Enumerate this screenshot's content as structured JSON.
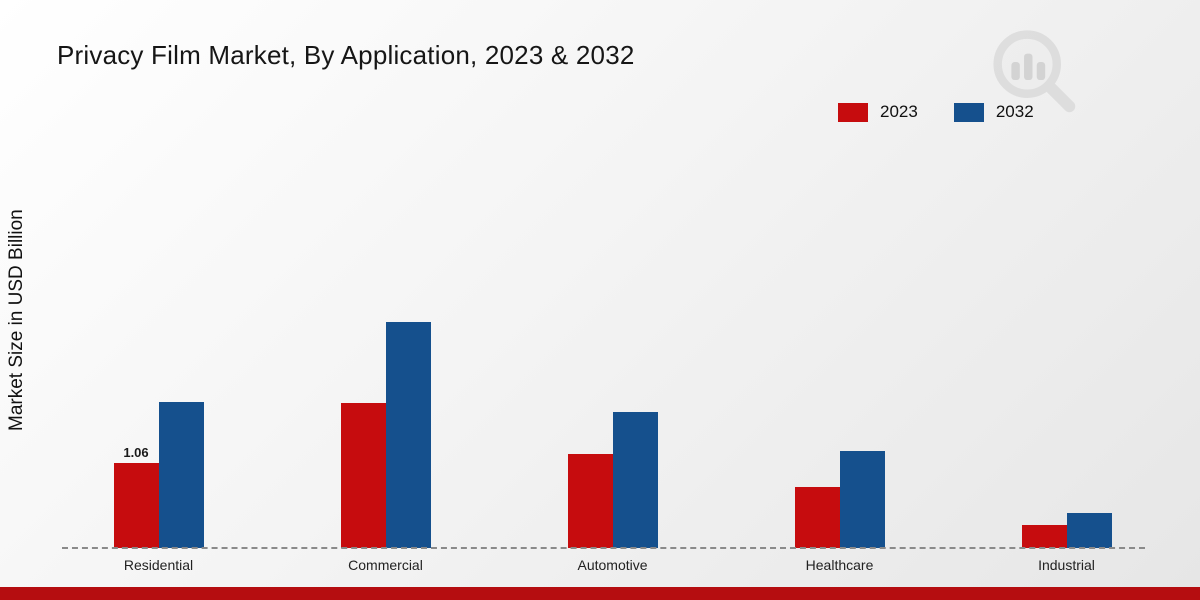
{
  "title": "Privacy Film Market, By Application, 2023 & 2032",
  "chart_data": {
    "type": "bar",
    "title": "Privacy Film Market, By Application, 2023 & 2032",
    "xlabel": "",
    "ylabel": "Market Size in USD Billion",
    "categories": [
      "Residential",
      "Commercial",
      "Automotive",
      "Healthcare",
      "Industrial"
    ],
    "series": [
      {
        "name": "2023",
        "color": "#c60c0e",
        "values": [
          1.06,
          1.81,
          1.18,
          0.76,
          0.29
        ]
      },
      {
        "name": "2032",
        "color": "#15508d",
        "values": [
          1.82,
          2.83,
          1.7,
          1.21,
          0.44
        ]
      }
    ],
    "annotations": [
      {
        "category": "Residential",
        "series": "2023",
        "text": "1.06"
      }
    ],
    "ylim": [
      0,
      3.5
    ],
    "grid": false,
    "legend_position": "top-right",
    "baseline_style": "dashed"
  },
  "footer": {
    "bar_color": "#b50d10"
  },
  "watermark": {
    "name": "market-research-logo"
  }
}
